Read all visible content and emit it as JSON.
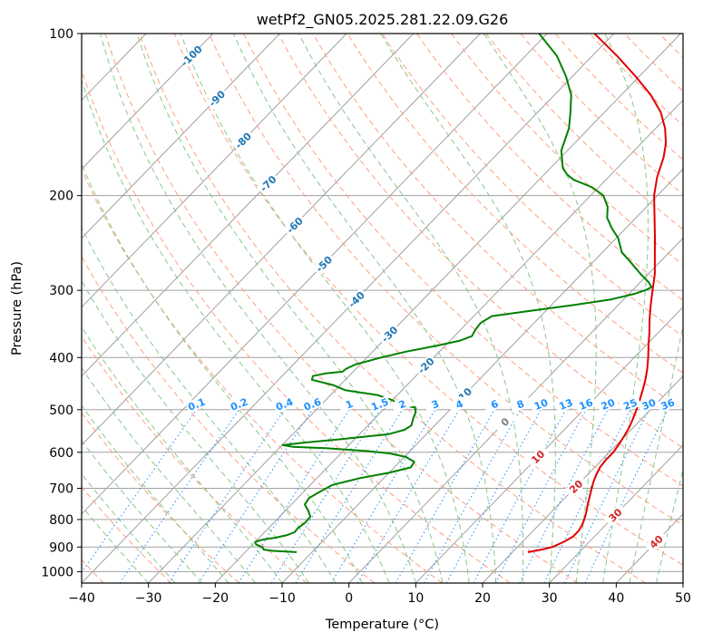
{
  "chart_data": {
    "type": "skew-t",
    "title": "wetPf2_GN05.2025.281.22.09.G26",
    "xlabel": "Temperature (°C)",
    "ylabel": "Pressure (hPa)",
    "xlim": [
      -40,
      50
    ],
    "ylim": [
      1050,
      100
    ],
    "yscale": "log",
    "skew_deg_per_decade": 78,
    "grid": true,
    "x_ticks": [
      -40,
      -30,
      -20,
      -10,
      0,
      10,
      20,
      30,
      40,
      50
    ],
    "x_tick_labels": [
      "−40",
      "−30",
      "−20",
      "−10",
      "0",
      "10",
      "20",
      "30",
      "40",
      "50"
    ],
    "y_ticks": [
      1000,
      900,
      800,
      700,
      600,
      500,
      400,
      300,
      200,
      100
    ],
    "y_tick_labels": [
      "1000",
      "900",
      "800",
      "700",
      "600",
      "500",
      "400",
      "300",
      "200",
      "100"
    ],
    "colors": {
      "temperature": "#e00000",
      "dewpoint": "#008000",
      "isotherm": "#a0a0a0",
      "dry_adiabat": "#ff9f80",
      "moist_adiabat": "#88c888",
      "mixing_ratio": "#1e90ff",
      "isotherm_label": "#1f77b4",
      "dry_adiabat_label": "#d62728"
    },
    "series": [
      {
        "name": "Temperature",
        "color": "#e00000",
        "points": [
          [
            920,
            22.3
          ],
          [
            910,
            24.0
          ],
          [
            900,
            25.2
          ],
          [
            880,
            26.2
          ],
          [
            860,
            26.8
          ],
          [
            840,
            26.8
          ],
          [
            820,
            26.5
          ],
          [
            800,
            26.0
          ],
          [
            780,
            25.4
          ],
          [
            760,
            24.7
          ],
          [
            740,
            24.0
          ],
          [
            720,
            23.3
          ],
          [
            700,
            22.6
          ],
          [
            680,
            21.9
          ],
          [
            660,
            21.3
          ],
          [
            640,
            20.8
          ],
          [
            620,
            20.6
          ],
          [
            600,
            20.6
          ],
          [
            580,
            20.3
          ],
          [
            560,
            19.9
          ],
          [
            540,
            19.4
          ],
          [
            520,
            18.7
          ],
          [
            500,
            17.9
          ],
          [
            480,
            17.0
          ],
          [
            460,
            16.0
          ],
          [
            440,
            14.9
          ],
          [
            420,
            13.6
          ],
          [
            400,
            12.1
          ],
          [
            380,
            10.4
          ],
          [
            360,
            8.7
          ],
          [
            340,
            6.8
          ],
          [
            320,
            4.9
          ],
          [
            300,
            3.0
          ],
          [
            280,
            1.0
          ],
          [
            260,
            -1.5
          ],
          [
            240,
            -4.2
          ],
          [
            220,
            -7.2
          ],
          [
            200,
            -10.5
          ],
          [
            185,
            -12.7
          ],
          [
            170,
            -14.6
          ],
          [
            160,
            -16.3
          ],
          [
            150,
            -18.6
          ],
          [
            140,
            -21.6
          ],
          [
            130,
            -25.6
          ],
          [
            120,
            -30.6
          ],
          [
            110,
            -36.3
          ],
          [
            100,
            -42.9
          ]
        ]
      },
      {
        "name": "Dewpoint",
        "color": "#008000",
        "points": [
          [
            920,
            -12.3
          ],
          [
            915,
            -16.0
          ],
          [
            910,
            -17.6
          ],
          [
            900,
            -18.2
          ],
          [
            890,
            -19.5
          ],
          [
            880,
            -20.0
          ],
          [
            872,
            -19.2
          ],
          [
            865,
            -17.6
          ],
          [
            855,
            -16.2
          ],
          [
            845,
            -15.5
          ],
          [
            830,
            -15.6
          ],
          [
            810,
            -15.3
          ],
          [
            790,
            -15.4
          ],
          [
            770,
            -16.6
          ],
          [
            750,
            -18.0
          ],
          [
            730,
            -18.3
          ],
          [
            710,
            -17.6
          ],
          [
            690,
            -16.7
          ],
          [
            670,
            -13.5
          ],
          [
            655,
            -10.0
          ],
          [
            640,
            -7.5
          ],
          [
            625,
            -7.8
          ],
          [
            612,
            -9.8
          ],
          [
            603,
            -12.6
          ],
          [
            597,
            -16.2
          ],
          [
            590,
            -22.7
          ],
          [
            586,
            -28.2
          ],
          [
            582,
            -29.9
          ],
          [
            576,
            -27.2
          ],
          [
            565,
            -20.8
          ],
          [
            555,
            -15.6
          ],
          [
            545,
            -13.9
          ],
          [
            535,
            -13.5
          ],
          [
            520,
            -14.2
          ],
          [
            505,
            -14.8
          ],
          [
            495,
            -15.6
          ],
          [
            490,
            -18.3
          ],
          [
            480,
            -20.0
          ],
          [
            470,
            -22.9
          ],
          [
            460,
            -28.5
          ],
          [
            450,
            -31.1
          ],
          [
            440,
            -35.0
          ],
          [
            433,
            -35.4
          ],
          [
            428,
            -33.8
          ],
          [
            425,
            -31.6
          ],
          [
            420,
            -31.5
          ],
          [
            412,
            -30.7
          ],
          [
            400,
            -27.9
          ],
          [
            390,
            -25.0
          ],
          [
            380,
            -21.2
          ],
          [
            372,
            -18.5
          ],
          [
            365,
            -17.4
          ],
          [
            355,
            -17.8
          ],
          [
            345,
            -18.0
          ],
          [
            335,
            -17.3
          ],
          [
            328,
            -12.6
          ],
          [
            320,
            -7.0
          ],
          [
            312,
            -1.9
          ],
          [
            305,
            0.7
          ],
          [
            300,
            1.9
          ],
          [
            296,
            2.4
          ],
          [
            290,
            1.3
          ],
          [
            280,
            -1.1
          ],
          [
            265,
            -4.6
          ],
          [
            255,
            -7.1
          ],
          [
            240,
            -9.7
          ],
          [
            230,
            -12.1
          ],
          [
            220,
            -14.3
          ],
          [
            210,
            -15.8
          ],
          [
            200,
            -18.1
          ],
          [
            193,
            -21.0
          ],
          [
            187,
            -24.8
          ],
          [
            183,
            -26.5
          ],
          [
            178,
            -28.1
          ],
          [
            165,
            -30.9
          ],
          [
            150,
            -33.0
          ],
          [
            140,
            -35.1
          ],
          [
            130,
            -37.5
          ],
          [
            120,
            -41.0
          ],
          [
            110,
            -45.3
          ],
          [
            100,
            -51.2
          ]
        ]
      }
    ],
    "isotherm_labels": [
      {
        "value": -100,
        "text": "-100",
        "p": 110
      },
      {
        "value": -90,
        "text": "-90",
        "p": 132
      },
      {
        "value": -80,
        "text": "-80",
        "p": 158
      },
      {
        "value": -70,
        "text": "-70",
        "p": 190
      },
      {
        "value": -60,
        "text": "-60",
        "p": 227
      },
      {
        "value": -50,
        "text": "-50",
        "p": 268
      },
      {
        "value": -40,
        "text": "-40",
        "p": 312
      },
      {
        "value": -30,
        "text": "-30",
        "p": 362
      },
      {
        "value": -20,
        "text": "-20",
        "p": 414
      },
      {
        "value": -10,
        "text": "-10",
        "p": 471
      },
      {
        "value": 0,
        "text": "0",
        "p": 527
      },
      {
        "value": 10,
        "text": "10",
        "p": 612
      },
      {
        "value": 20,
        "text": "20",
        "p": 695
      },
      {
        "value": 30,
        "text": "30",
        "p": 785
      },
      {
        "value": 40,
        "text": "40",
        "p": 880
      }
    ],
    "mixing_ratio_labels": [
      {
        "value": 0.1,
        "text": "0.1"
      },
      {
        "value": 0.2,
        "text": "0.2"
      },
      {
        "value": 0.4,
        "text": "0.4"
      },
      {
        "value": 0.6,
        "text": "0.6"
      },
      {
        "value": 1,
        "text": "1"
      },
      {
        "value": 1.5,
        "text": "1.5"
      },
      {
        "value": 2,
        "text": "2"
      },
      {
        "value": 3,
        "text": "3"
      },
      {
        "value": 4,
        "text": "4"
      },
      {
        "value": 6,
        "text": "6"
      },
      {
        "value": 8,
        "text": "8"
      },
      {
        "value": 10,
        "text": "10"
      },
      {
        "value": 13,
        "text": "13"
      },
      {
        "value": 16,
        "text": "16"
      },
      {
        "value": 20,
        "text": "20"
      },
      {
        "value": 25,
        "text": "25"
      },
      {
        "value": 30,
        "text": "30"
      },
      {
        "value": 36,
        "text": "36"
      }
    ],
    "mixing_ratio_label_pressure": 500
  }
}
